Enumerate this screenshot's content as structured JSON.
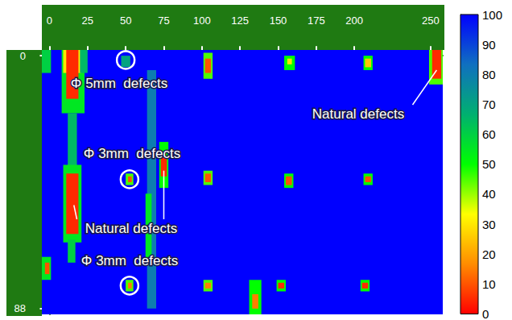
{
  "chart_data": {
    "type": "heatmap",
    "xlim": [
      -5,
      258
    ],
    "xticks": [
      0,
      25,
      50,
      75,
      100,
      125,
      150,
      175,
      200,
      250
    ],
    "ylim": [
      -2,
      90
    ],
    "yticks": [
      0,
      88
    ],
    "cells": [
      [
        -5,
        258,
        -2,
        90,
        100
      ],
      [
        8,
        23,
        -2,
        20,
        55
      ],
      [
        9,
        21,
        -2,
        6,
        30
      ],
      [
        11,
        19,
        -2,
        15,
        5
      ],
      [
        12,
        18,
        20,
        40,
        65
      ],
      [
        9,
        21,
        38,
        65,
        55
      ],
      [
        11,
        19,
        41,
        62,
        5
      ],
      [
        12,
        17,
        64,
        72,
        60
      ],
      [
        -5,
        1,
        -2,
        6,
        60
      ],
      [
        -5,
        1,
        70,
        78,
        55
      ],
      [
        -3,
        0,
        72,
        76,
        10
      ],
      [
        20,
        25,
        -2,
        6,
        65
      ],
      [
        47,
        53,
        0,
        4,
        70
      ],
      [
        64,
        70,
        5,
        88,
        80
      ],
      [
        63,
        67,
        48,
        72,
        55
      ],
      [
        72,
        78,
        30,
        46,
        50
      ],
      [
        73,
        77,
        35,
        42,
        5
      ],
      [
        50,
        55,
        41,
        45,
        45
      ],
      [
        51.5,
        54,
        42,
        44,
        10
      ],
      [
        50,
        55,
        78,
        82,
        45
      ],
      [
        51.5,
        54,
        79,
        81,
        15
      ],
      [
        101,
        107,
        -1,
        8,
        45
      ],
      [
        102,
        106,
        1,
        6,
        10
      ],
      [
        101,
        107,
        40,
        45,
        45
      ],
      [
        102,
        106,
        41,
        44,
        10
      ],
      [
        101,
        107,
        78,
        82,
        45
      ],
      [
        102,
        106,
        79,
        81,
        15
      ],
      [
        131,
        139,
        78,
        90,
        50
      ],
      [
        133,
        137,
        83,
        88,
        15
      ],
      [
        154,
        161,
        0,
        5,
        50
      ],
      [
        156,
        159,
        1,
        3,
        30
      ],
      [
        154,
        160,
        41,
        46,
        50
      ],
      [
        155,
        159,
        42,
        45,
        10
      ],
      [
        149,
        155,
        78,
        82,
        50
      ],
      [
        150,
        154,
        79,
        81,
        5
      ],
      [
        206,
        212,
        0,
        5,
        50
      ],
      [
        207,
        211,
        1,
        4,
        25
      ],
      [
        206,
        212,
        41,
        45,
        50
      ],
      [
        207,
        211,
        42,
        44,
        10
      ],
      [
        204,
        210,
        78,
        82,
        50
      ],
      [
        205,
        209,
        79,
        81,
        5
      ],
      [
        249,
        258,
        -2,
        10,
        45
      ],
      [
        251,
        257,
        -2,
        8,
        5
      ]
    ],
    "colorbar": {
      "range": [
        0,
        100
      ],
      "ticks": [
        0,
        10,
        20,
        30,
        40,
        50,
        60,
        70,
        80,
        90,
        100
      ]
    },
    "annotations": [
      {
        "text": "Φ 5mm  defects",
        "x": 50,
        "y": 1.5,
        "marker": "circle"
      },
      {
        "text": "Φ 3mm  defects",
        "x": 52.5,
        "y": 43,
        "marker": "circle"
      },
      {
        "text": "Φ 3mm  defects",
        "x": 52.5,
        "y": 80,
        "marker": "circle"
      },
      {
        "text": "Natural defects",
        "points": [
          [
            16,
            52
          ],
          [
            75,
            40
          ]
        ]
      },
      {
        "text": "Natural defects",
        "points": [
          [
            254,
            5
          ]
        ]
      }
    ]
  }
}
